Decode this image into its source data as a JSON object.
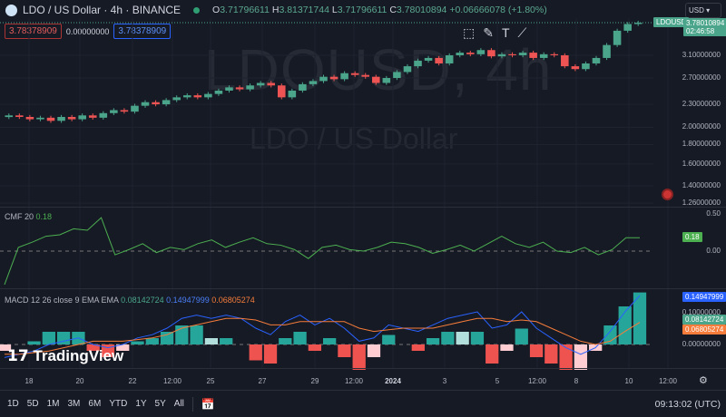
{
  "header": {
    "title": "LDO / US Dollar · 4h · BINANCE",
    "o_label": "O",
    "o": "3.71796611",
    "h_label": "H",
    "h": "3.81371744",
    "l_label": "L",
    "l": "3.71796611",
    "c_label": "C",
    "c": "3.78010894",
    "change": "+0.06666078 (+1.80%)",
    "bid": "3.78378909",
    "spread": "0.00000000",
    "ask": "3.78378909"
  },
  "watermark": {
    "symbol": "LDOUSD, 4h",
    "name": "LDO / US Dollar"
  },
  "currency": "USD",
  "price_axis": [
    "3.10000000",
    "2.70000000",
    "2.30000000",
    "2.00000000",
    "1.80000000",
    "1.60000000",
    "1.40000000",
    "1.26000000"
  ],
  "price_axis_values": [
    3.1,
    2.7,
    2.3,
    2.0,
    1.8,
    1.6,
    1.4,
    1.26
  ],
  "last_price": {
    "symbol": "LDOUSD",
    "price": "3.78010894",
    "countdown": "02:46:58"
  },
  "cmf": {
    "label": "CMF 20",
    "value": "0.18",
    "axis": [
      "0.50",
      "0.00"
    ],
    "values": [
      -0.45,
      0.05,
      0.12,
      0.2,
      0.22,
      0.3,
      0.28,
      0.45,
      -0.05,
      0.02,
      0.1,
      -0.02,
      0.05,
      0.02,
      0.1,
      0.15,
      0.05,
      0.12,
      0.18,
      0.1,
      0.08,
      0.02,
      -0.1,
      0.05,
      0.08,
      0.02,
      0.0,
      0.05,
      0.12,
      0.1,
      0.05,
      -0.03,
      0.02,
      0.08,
      0.0,
      0.1,
      0.2,
      0.1,
      0.05,
      0.12,
      0.0,
      -0.02,
      0.05,
      -0.05,
      0.02,
      0.18,
      0.18
    ]
  },
  "macd": {
    "label": "MACD 12 26 close 9 EMA EMA",
    "hist": "0.08142724",
    "macd": "0.14947999",
    "signal": "0.06805274",
    "axis": [
      "0.10000000",
      "0.00000000"
    ],
    "axis_values": [
      0.1,
      0.0
    ],
    "macd_values": [
      -0.04,
      -0.03,
      -0.02,
      0.0,
      0.01,
      0.02,
      0.0,
      -0.01,
      0.0,
      0.02,
      0.03,
      0.05,
      0.08,
      0.09,
      0.08,
      0.09,
      0.08,
      0.05,
      0.03,
      0.07,
      0.09,
      0.06,
      0.08,
      0.05,
      0.01,
      0.02,
      0.06,
      0.05,
      0.04,
      0.06,
      0.08,
      0.09,
      0.1,
      0.05,
      0.06,
      0.1,
      0.05,
      0.02,
      -0.01,
      -0.03,
      -0.01,
      0.04,
      0.1,
      0.15
    ],
    "signal_values": [
      -0.03,
      -0.03,
      -0.025,
      -0.02,
      -0.01,
      0.0,
      0.01,
      0.01,
      0.01,
      0.015,
      0.02,
      0.03,
      0.05,
      0.06,
      0.07,
      0.08,
      0.08,
      0.075,
      0.06,
      0.06,
      0.07,
      0.07,
      0.07,
      0.07,
      0.05,
      0.04,
      0.045,
      0.05,
      0.05,
      0.05,
      0.06,
      0.07,
      0.08,
      0.08,
      0.07,
      0.075,
      0.07,
      0.05,
      0.03,
      0.01,
      0.0,
      0.01,
      0.04,
      0.068
    ]
  },
  "time_axis": [
    "18",
    "20",
    "22",
    "12:00",
    "25",
    "27",
    "29",
    "12:00",
    "2024",
    "3",
    "5",
    "12:00",
    "8",
    "10",
    "12:00"
  ],
  "ranges": [
    "1D",
    "5D",
    "1M",
    "3M",
    "6M",
    "YTD",
    "1Y",
    "5Y",
    "All"
  ],
  "clock": "09:13:02 (UTC)",
  "brand": "TradingView",
  "colors": {
    "up": "#4aa58a",
    "down": "#ee5453",
    "macd": "#2962ff",
    "signal": "#f57c3a",
    "cmf": "#4caf50"
  },
  "chart_data": {
    "type": "candlestick",
    "closes": [
      2.15,
      2.13,
      2.1,
      2.12,
      2.08,
      2.13,
      2.1,
      2.15,
      2.12,
      2.18,
      2.22,
      2.2,
      2.28,
      2.33,
      2.3,
      2.36,
      2.4,
      2.43,
      2.4,
      2.45,
      2.5,
      2.55,
      2.52,
      2.58,
      2.62,
      2.58,
      2.4,
      2.5,
      2.6,
      2.65,
      2.72,
      2.68,
      2.78,
      2.75,
      2.72,
      2.62,
      2.7,
      2.8,
      2.9,
      3.0,
      3.05,
      2.95,
      3.1,
      3.15,
      3.12,
      3.2,
      3.08,
      3.12,
      3.1,
      3.15,
      3.05,
      3.12,
      3.1,
      2.9,
      2.85,
      2.95,
      3.05,
      3.3,
      3.6,
      3.75,
      3.78
    ]
  }
}
